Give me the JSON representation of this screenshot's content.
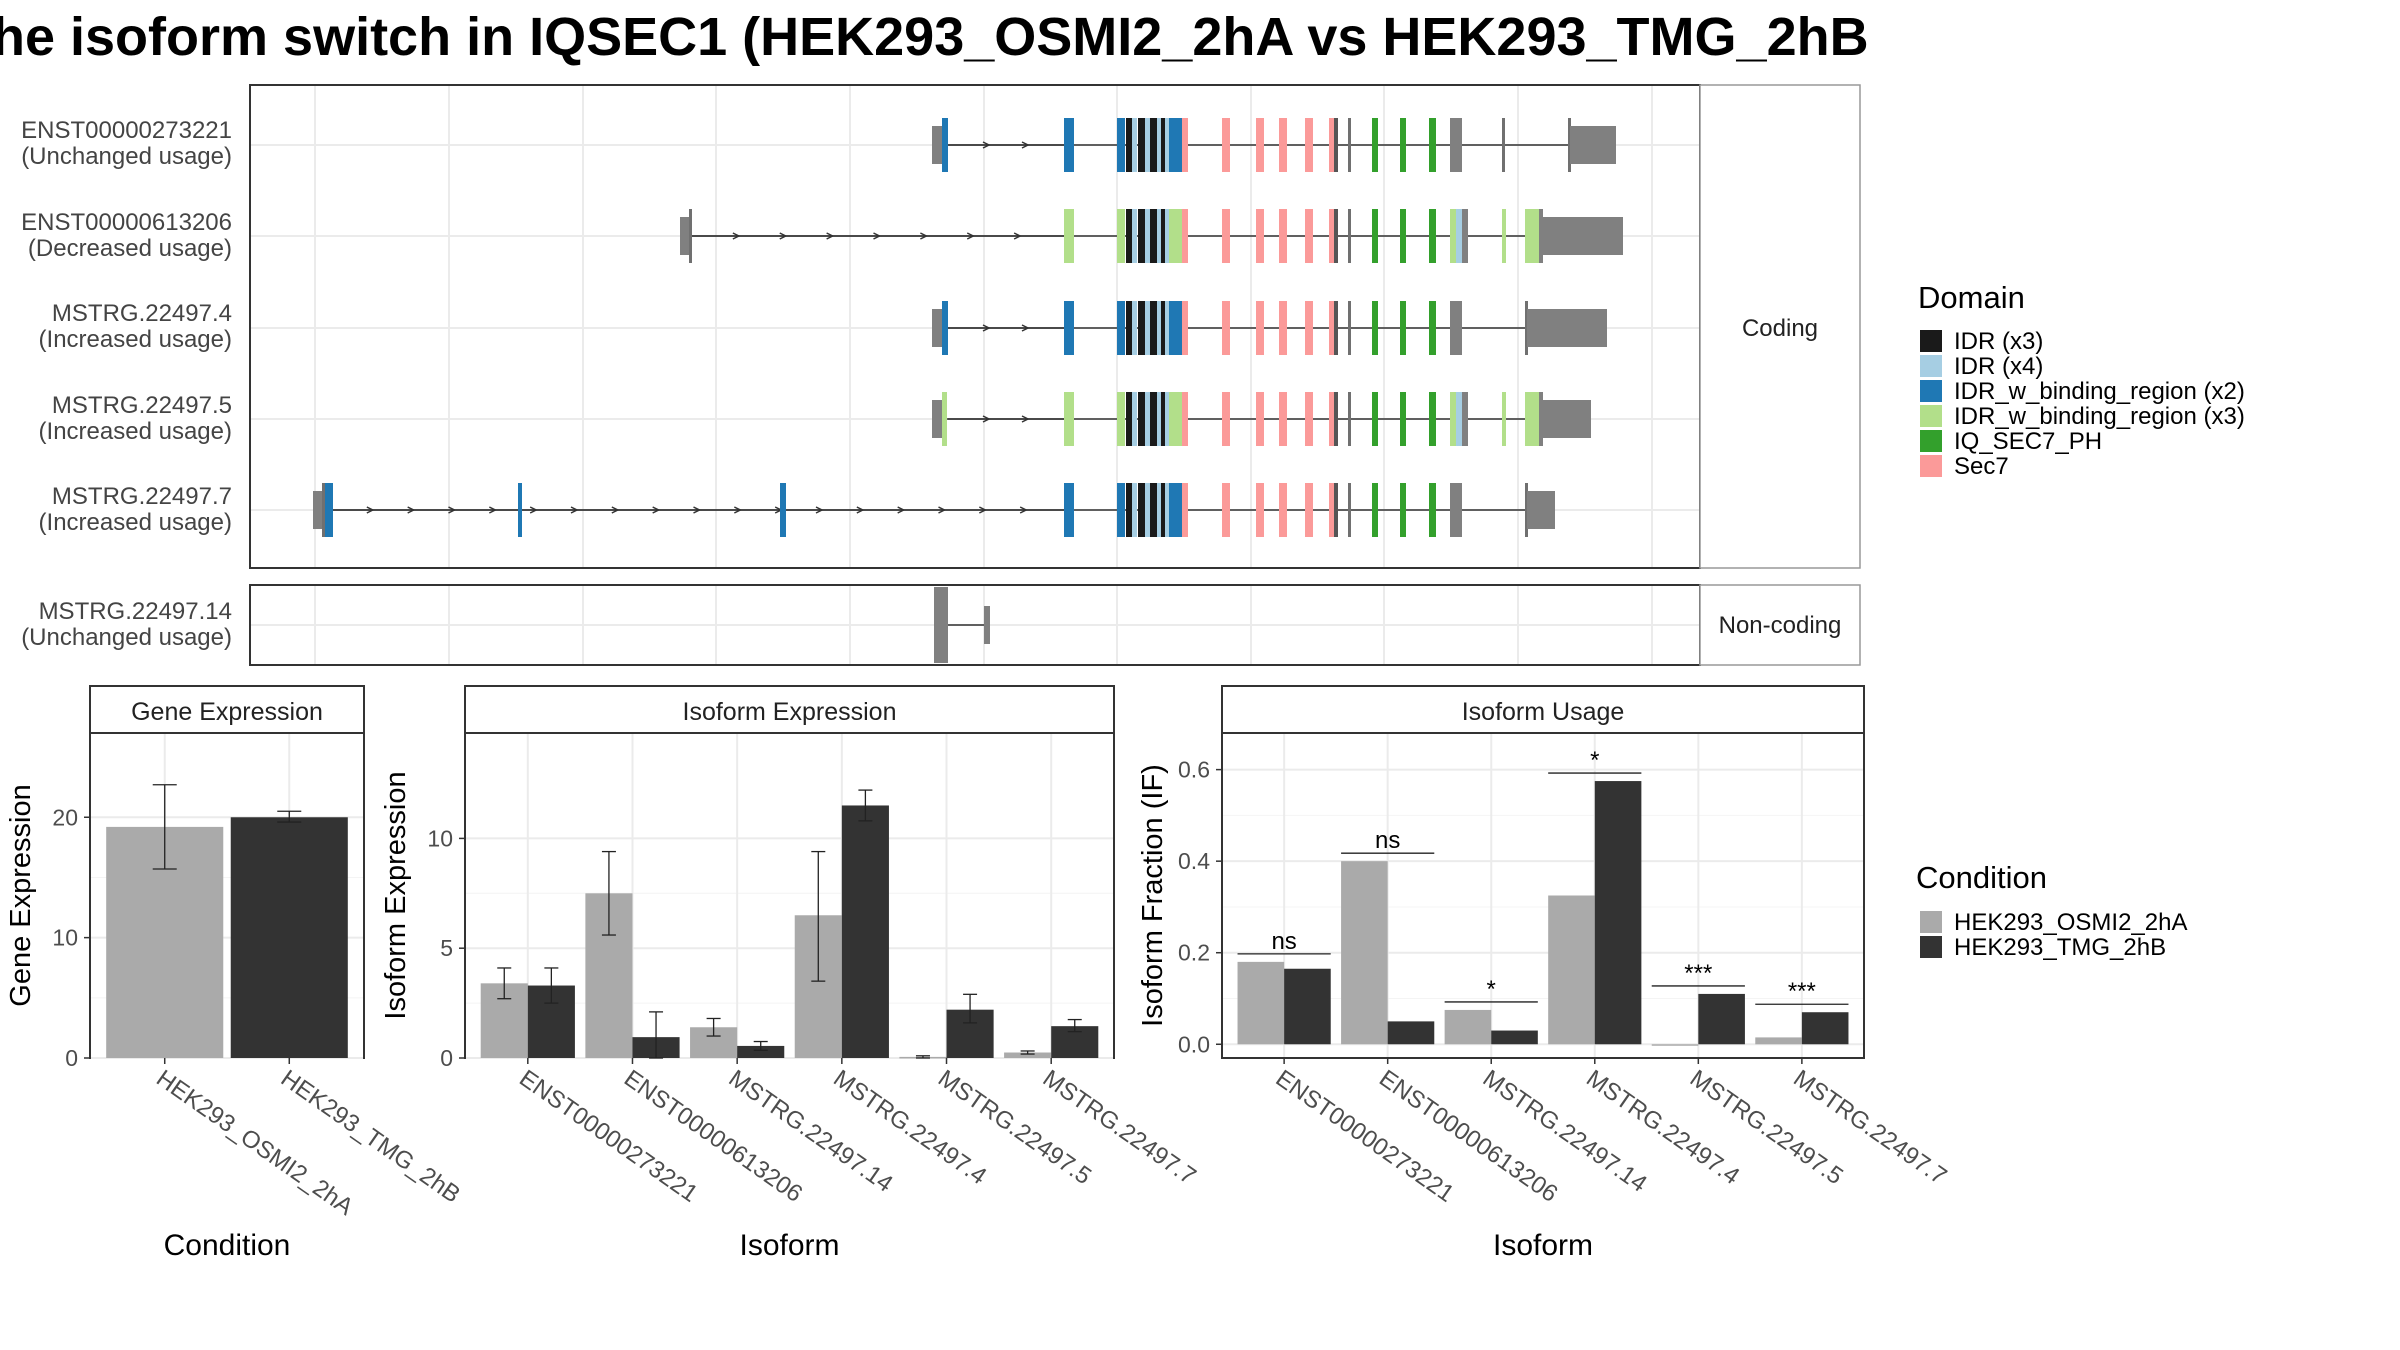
{
  "title": "he isoform switch in IQSEC1 (HEK293_OSMI2_2hA vs HEK293_TMG_2hB",
  "colors": {
    "domains": {
      "IDR (x3)": "#1a1a1a",
      "IDR (x4)": "#a6cee3",
      "IDR_w_binding_region (x2)": "#1f78b4",
      "IDR_w_binding_region (x3)": "#b2df8a",
      "IQ_SEC7_PH": "#33a02c",
      "Sec7": "#fb9a99"
    },
    "utr": "#808080",
    "conditions": {
      "HEK293_OSMI2_2hA": "#aaaaaa",
      "HEK293_TMG_2hB": "#333333"
    }
  },
  "structure_panels": [
    {
      "strip": "Coding",
      "transcripts": [
        {
          "id": "ENST00000273221",
          "usage": "(Unchanged usage)"
        },
        {
          "id": "ENST00000613206",
          "usage": "(Decreased usage)"
        },
        {
          "id": "MSTRG.22497.4",
          "usage": "(Increased usage)"
        },
        {
          "id": "MSTRG.22497.5",
          "usage": "(Increased usage)"
        },
        {
          "id": "MSTRG.22497.7",
          "usage": "(Increased usage)"
        }
      ]
    },
    {
      "strip": "Non-coding",
      "transcripts": [
        {
          "id": "MSTRG.22497.14",
          "usage": "(Unchanged usage)"
        }
      ]
    }
  ],
  "domain_legend": {
    "title": "Domain",
    "items": [
      "IDR (x3)",
      "IDR (x4)",
      "IDR_w_binding_region (x2)",
      "IDR_w_binding_region (x3)",
      "IQ_SEC7_PH",
      "Sec7"
    ]
  },
  "condition_legend": {
    "title": "Condition",
    "items": [
      "HEK293_OSMI2_2hA",
      "HEK293_TMG_2hB"
    ]
  },
  "chart_data": [
    {
      "type": "bar",
      "title": "Gene Expression",
      "xlabel": "Condition",
      "ylabel": "Gene Expression",
      "categories": [
        "HEK293_OSMI2_2hA",
        "HEK293_TMG_2hB"
      ],
      "values": [
        19.2,
        20.0
      ],
      "error_low": [
        15.7,
        19.6
      ],
      "error_high": [
        22.7,
        20.5
      ],
      "ylim": [
        0,
        27
      ],
      "yticks": [
        0,
        10,
        20
      ]
    },
    {
      "type": "bar",
      "title": "Isoform Expression",
      "xlabel": "Isoform",
      "ylabel": "Isoform Expression",
      "categories": [
        "ENST00000273221",
        "ENST00000613206",
        "MSTRG.22497.14",
        "MSTRG.22497.4",
        "MSTRG.22497.5",
        "MSTRG.22497.7"
      ],
      "series": [
        {
          "name": "HEK293_OSMI2_2hA",
          "values": [
            3.4,
            7.5,
            1.4,
            6.5,
            0.05,
            0.25
          ],
          "error_low": [
            2.7,
            5.6,
            1.0,
            3.5,
            0.0,
            0.18
          ],
          "error_high": [
            4.1,
            9.4,
            1.8,
            9.4,
            0.1,
            0.32
          ]
        },
        {
          "name": "HEK293_TMG_2hB",
          "values": [
            3.3,
            0.95,
            0.55,
            11.5,
            2.2,
            1.45
          ],
          "error_low": [
            2.5,
            0.0,
            0.35,
            10.8,
            1.6,
            1.2
          ],
          "error_high": [
            4.1,
            2.1,
            0.75,
            12.2,
            2.9,
            1.75
          ]
        }
      ],
      "ylim": [
        0,
        14.8
      ],
      "yticks": [
        0,
        5,
        10
      ]
    },
    {
      "type": "bar",
      "title": "Isoform Usage",
      "xlabel": "Isoform",
      "ylabel": "Isoform Fraction (IF)",
      "categories": [
        "ENST00000273221",
        "ENST00000613206",
        "MSTRG.22497.14",
        "MSTRG.22497.4",
        "MSTRG.22497.5",
        "MSTRG.22497.7"
      ],
      "series": [
        {
          "name": "HEK293_OSMI2_2hA",
          "values": [
            0.18,
            0.4,
            0.075,
            0.325,
            0.0,
            0.015
          ]
        },
        {
          "name": "HEK293_TMG_2hB",
          "values": [
            0.165,
            0.05,
            0.03,
            0.575,
            0.11,
            0.07
          ]
        }
      ],
      "significance": [
        "ns",
        "ns",
        "*",
        "*",
        "***",
        "***"
      ],
      "ylim": [
        -0.03,
        0.68
      ],
      "yticks": [
        0.0,
        0.2,
        0.4,
        0.6
      ],
      "ytick_labels": [
        "0.0",
        "0.2",
        "0.4",
        "0.6"
      ]
    }
  ]
}
